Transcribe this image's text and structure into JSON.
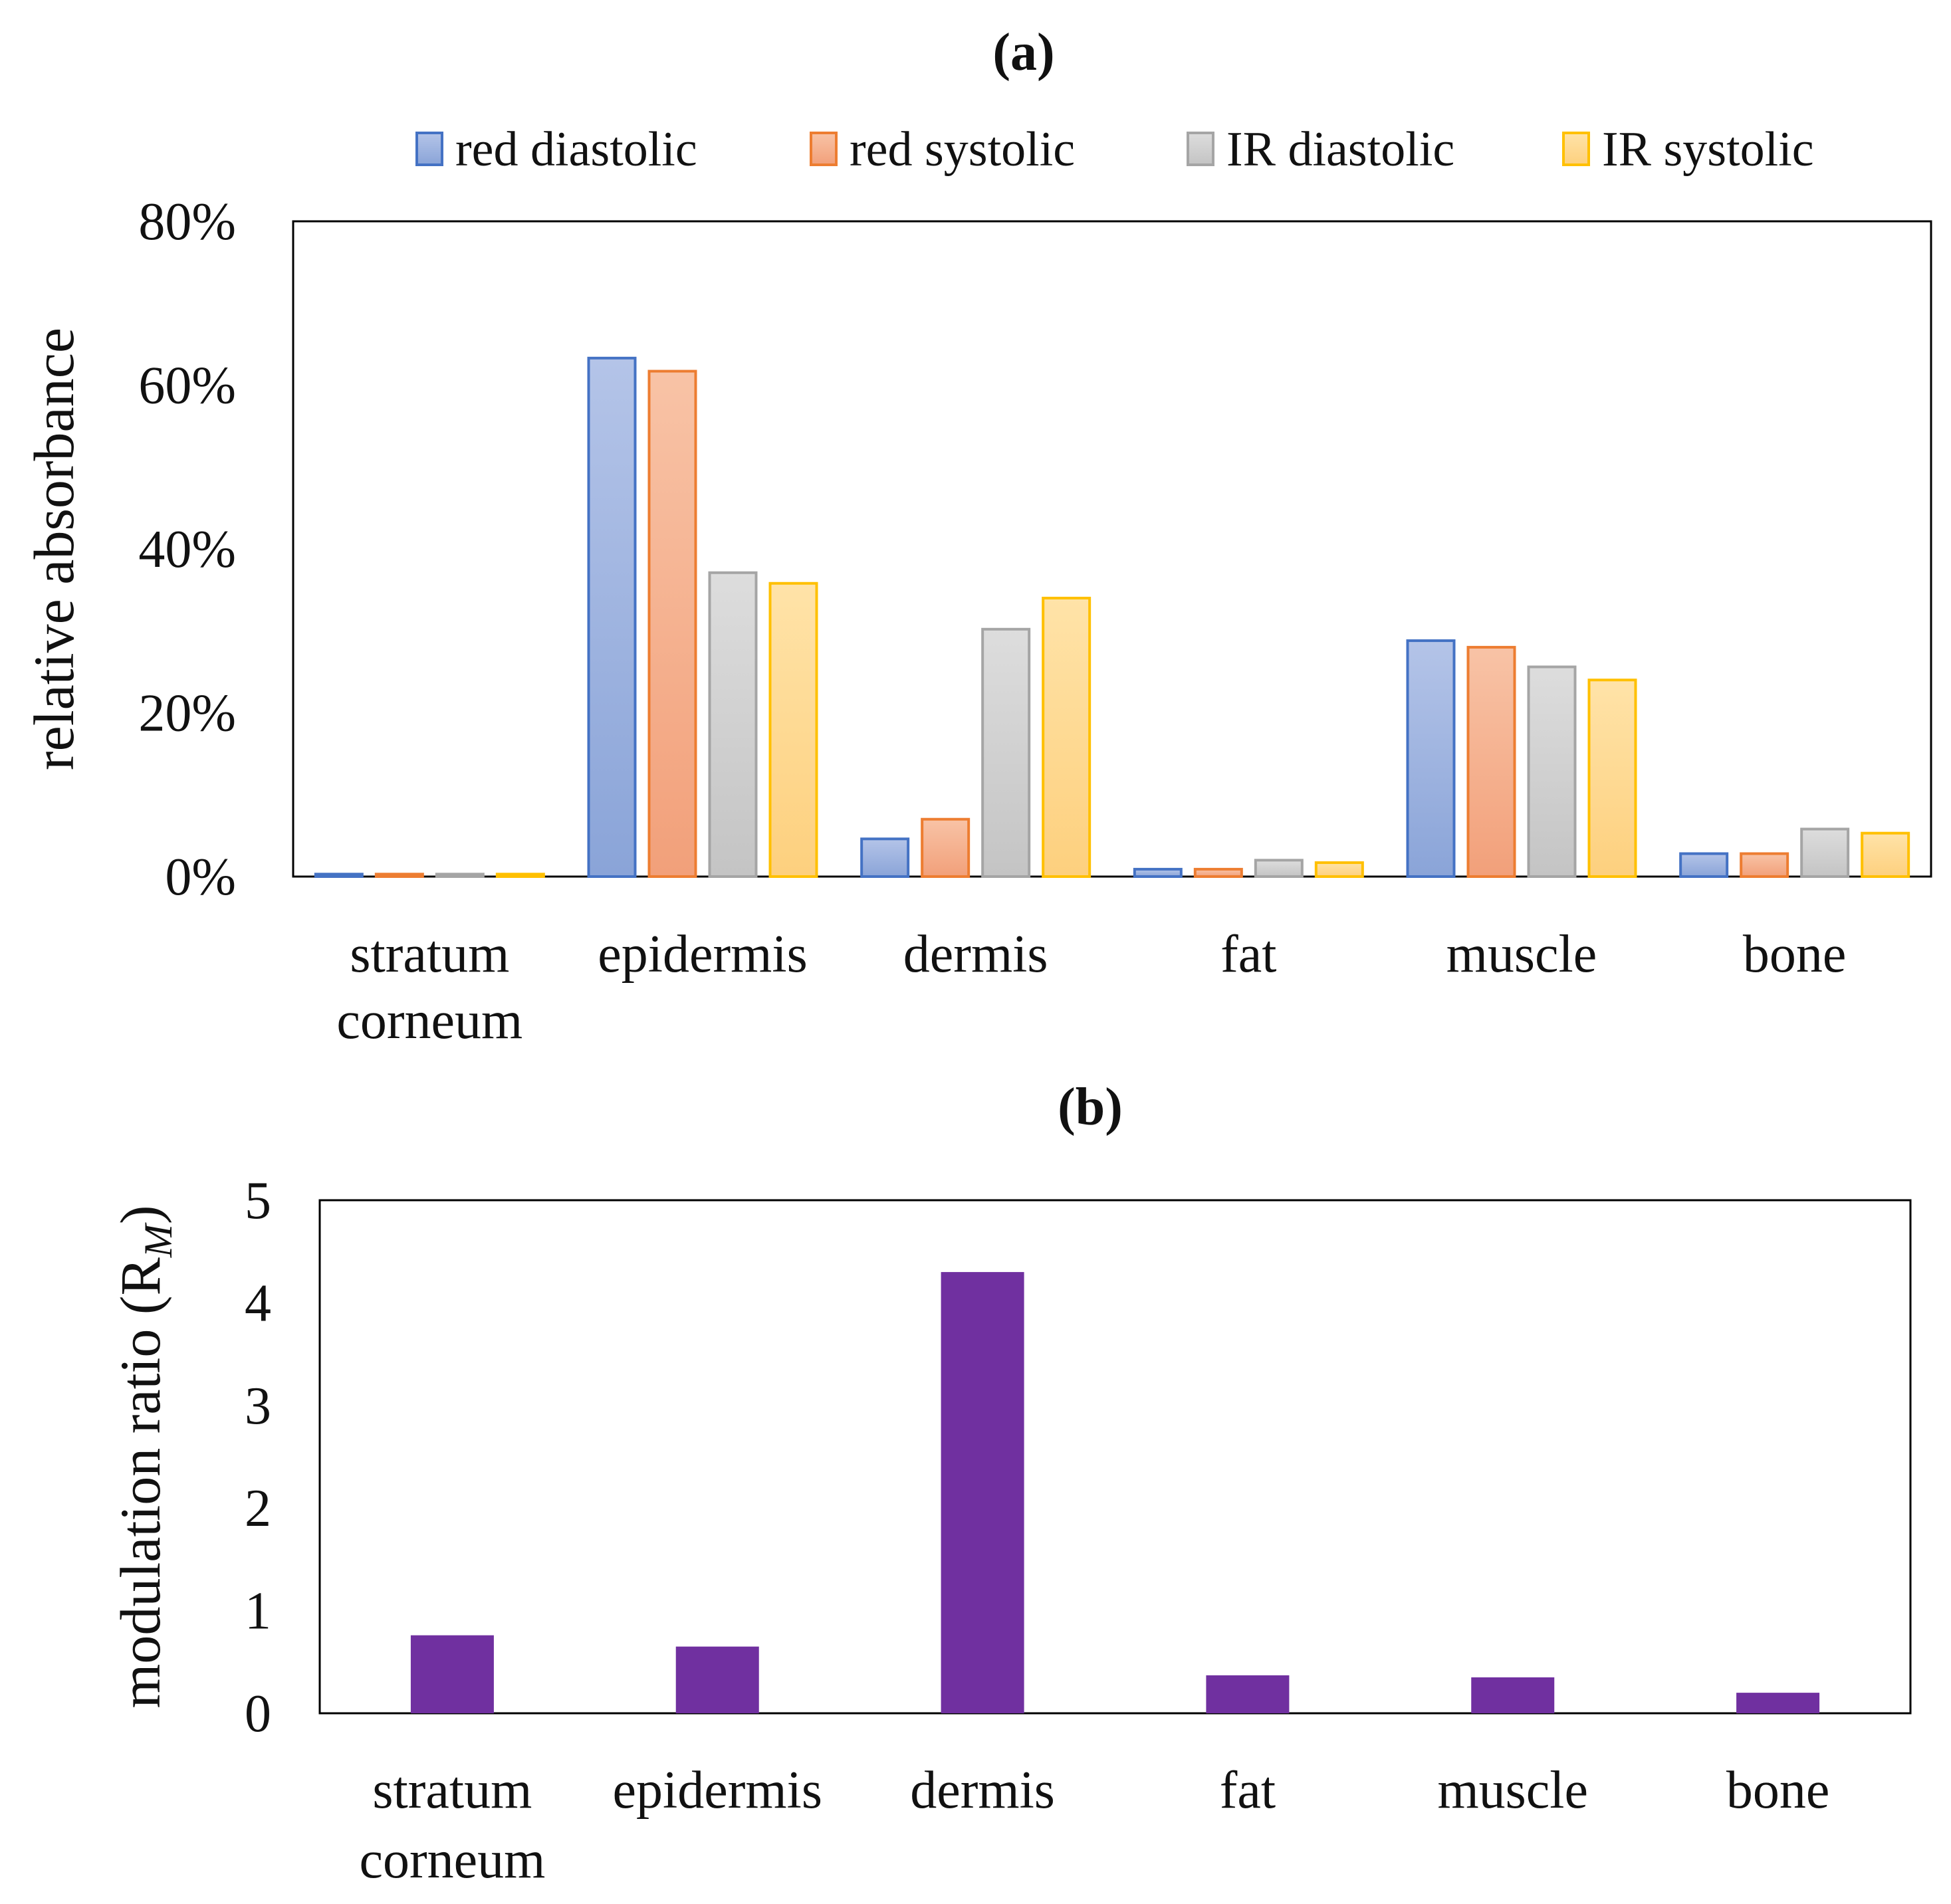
{
  "chart_data": [
    {
      "id": "a",
      "type": "bar",
      "title": "(a)",
      "ylabel": "relative absorbance",
      "xlabel": "",
      "ylim": [
        0,
        80
      ],
      "yticks": [
        0,
        20,
        40,
        60,
        80
      ],
      "ytick_labels": [
        "0%",
        "20%",
        "40%",
        "60%",
        "80%"
      ],
      "categories": [
        [
          "stratum",
          "corneum"
        ],
        [
          "epidermis"
        ],
        [
          "dermis"
        ],
        [
          "fat"
        ],
        [
          "muscle"
        ],
        [
          "bone"
        ]
      ],
      "legend_position": "top",
      "series": [
        {
          "name": "red diastolic",
          "values": [
            0.3,
            63.3,
            4.6,
            0.9,
            28.8,
            2.8
          ],
          "colors": {
            "stroke": "#4472c4",
            "top": "#b4c4e8",
            "bottom": "#8aa4d8"
          }
        },
        {
          "name": "red systolic",
          "values": [
            0.3,
            61.7,
            7.0,
            0.9,
            28.0,
            2.8
          ],
          "colors": {
            "stroke": "#ed7d31",
            "top": "#f8c3a6",
            "bottom": "#f2a07a"
          }
        },
        {
          "name": "IR diastolic",
          "values": [
            0.3,
            37.1,
            30.2,
            2.0,
            25.6,
            5.8
          ],
          "colors": {
            "stroke": "#a5a5a5",
            "top": "#dddddd",
            "bottom": "#c4c4c4"
          }
        },
        {
          "name": "IR systolic",
          "values": [
            0.3,
            35.8,
            34.0,
            1.7,
            24.0,
            5.3
          ],
          "colors": {
            "stroke": "#ffc000",
            "top": "#ffe3a8",
            "bottom": "#fdd07e"
          }
        }
      ]
    },
    {
      "id": "b",
      "type": "bar",
      "title": "(b)",
      "ylabel": "modulation ratio (R",
      "ylabel_sub": "M",
      "ylabel_close": ")",
      "xlabel": "",
      "ylim": [
        0,
        5
      ],
      "yticks": [
        0,
        1,
        2,
        3,
        4,
        5
      ],
      "ytick_labels": [
        "0",
        "1",
        "2",
        "3",
        "4",
        "5"
      ],
      "categories": [
        [
          "stratum",
          "corneum"
        ],
        [
          "epidermis"
        ],
        [
          "dermis"
        ],
        [
          "fat"
        ],
        [
          "muscle"
        ],
        [
          "bone"
        ]
      ],
      "series": [
        {
          "name": "modulation ratio",
          "values": [
            0.76,
            0.65,
            4.3,
            0.37,
            0.35,
            0.2
          ],
          "colors": {
            "fill": "#7030a0"
          }
        }
      ]
    }
  ]
}
